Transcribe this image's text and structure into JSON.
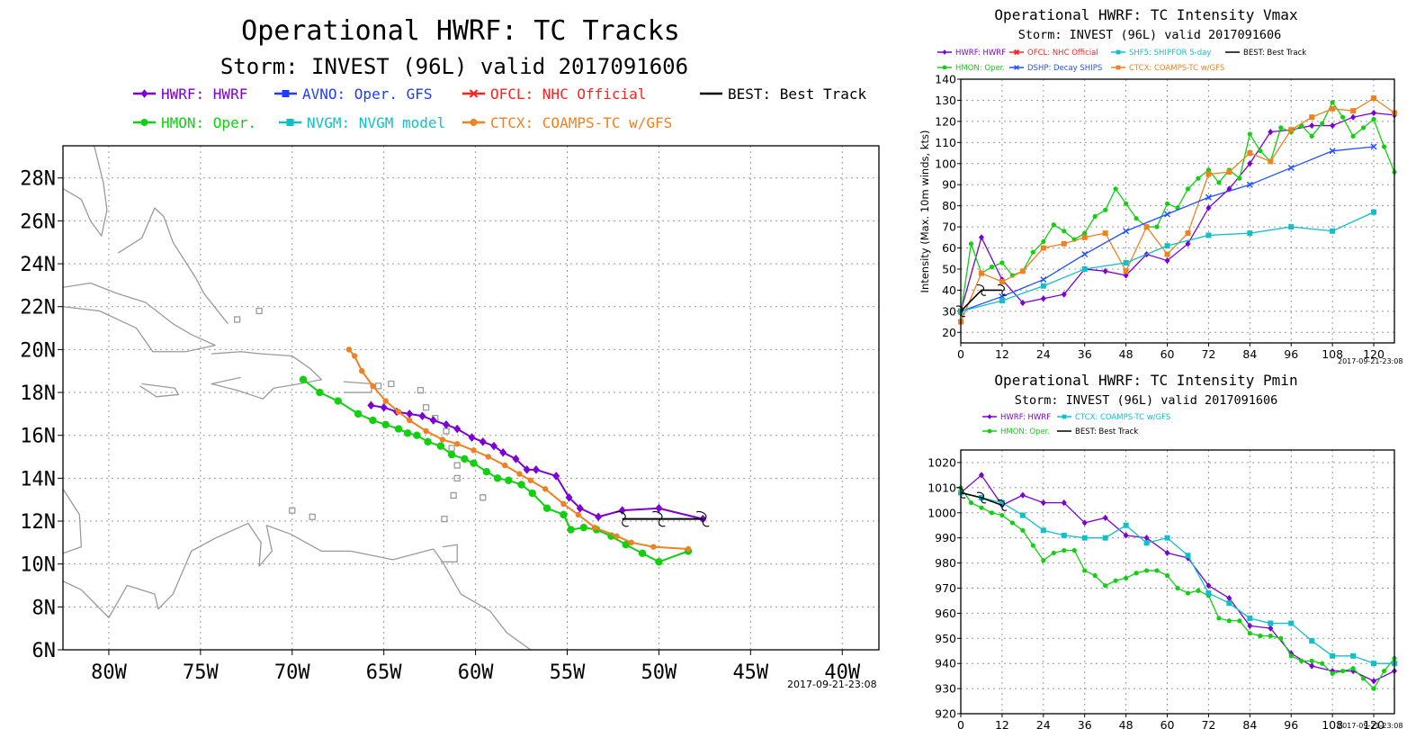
{
  "colors": {
    "HWRF": "#7b00d6",
    "AVNO": "#1e3cff",
    "OFCL": "#ff2020",
    "BEST": "#000000",
    "HMON": "#10d010",
    "NVGM": "#10c0c8",
    "CTCX": "#f08020",
    "DSHP": "#2050ff",
    "SHF5": "#10c0c8",
    "land": "#9a9a9a"
  },
  "chart_data": [
    {
      "id": "tracks",
      "type": "line",
      "title": "Operational HWRF: TC Tracks",
      "subtitle": "Storm: INVEST (96L) valid 2017091606",
      "timestamp": "2017-09-21-23:08",
      "xlim": [
        -82.5,
        -38
      ],
      "ylim": [
        6,
        29.5
      ],
      "xticks": [
        -80,
        -75,
        -70,
        -65,
        -60,
        -55,
        -50,
        -45,
        -40
      ],
      "xtick_labels": [
        "80W",
        "75W",
        "70W",
        "65W",
        "60W",
        "55W",
        "50W",
        "45W",
        "40W"
      ],
      "yticks": [
        6,
        8,
        10,
        12,
        14,
        16,
        18,
        20,
        22,
        24,
        26,
        28
      ],
      "ytick_labels": [
        "6N",
        "8N",
        "10N",
        "12N",
        "14N",
        "16N",
        "18N",
        "20N",
        "22N",
        "24N",
        "26N",
        "28N"
      ],
      "legend": [
        {
          "key": "HWRF",
          "label": "HWRF: HWRF"
        },
        {
          "key": "AVNO",
          "label": "AVNO: Oper. GFS"
        },
        {
          "key": "OFCL",
          "label": "OFCL: NHC Official"
        },
        {
          "key": "BEST",
          "label": "BEST: Best Track"
        },
        {
          "key": "HMON",
          "label": "HMON: Oper."
        },
        {
          "key": "NVGM",
          "label": "NVGM: NVGM model"
        },
        {
          "key": "CTCX",
          "label": "CTCX: COAMPS-TC w/GFS"
        }
      ],
      "series": [
        {
          "key": "HWRF",
          "points": [
            [
              -47.6,
              12.1
            ],
            [
              -50,
              12.6
            ],
            [
              -52,
              12.5
            ],
            [
              -53.3,
              12.2
            ],
            [
              -54.3,
              12.6
            ],
            [
              -54.9,
              13.1
            ],
            [
              -55.6,
              14.1
            ],
            [
              -56.7,
              14.4
            ],
            [
              -57.2,
              14.4
            ],
            [
              -57.8,
              14.9
            ],
            [
              -58.5,
              15.2
            ],
            [
              -59,
              15.5
            ],
            [
              -59.6,
              15.7
            ],
            [
              -60.2,
              15.9
            ],
            [
              -61,
              16.3
            ],
            [
              -61.6,
              16.5
            ],
            [
              -62.3,
              16.7
            ],
            [
              -62.9,
              16.9
            ],
            [
              -63.6,
              17
            ],
            [
              -64.3,
              17.1
            ],
            [
              -65,
              17.3
            ],
            [
              -65.7,
              17.4
            ]
          ]
        },
        {
          "key": "HMON",
          "points": [
            [
              -48.4,
              10.6
            ],
            [
              -50,
              10.1
            ],
            [
              -50.9,
              10.5
            ],
            [
              -51.8,
              10.9
            ],
            [
              -52.6,
              11.3
            ],
            [
              -53.4,
              11.6
            ],
            [
              -54.1,
              11.7
            ],
            [
              -54.8,
              11.6
            ],
            [
              -55.2,
              12.3
            ],
            [
              -56.1,
              12.6
            ],
            [
              -56.9,
              13.3
            ],
            [
              -57.5,
              13.7
            ],
            [
              -58.2,
              13.9
            ],
            [
              -58.8,
              14
            ],
            [
              -59.4,
              14.3
            ],
            [
              -60.1,
              14.7
            ],
            [
              -60.6,
              14.9
            ],
            [
              -61.3,
              15.1
            ],
            [
              -61.9,
              15.5
            ],
            [
              -62.6,
              15.7
            ],
            [
              -63.2,
              16
            ],
            [
              -63.7,
              16.1
            ],
            [
              -64.2,
              16.3
            ],
            [
              -64.9,
              16.5
            ],
            [
              -65.6,
              16.7
            ],
            [
              -66.4,
              17
            ],
            [
              -67.5,
              17.6
            ],
            [
              -68.5,
              18
            ],
            [
              -69.4,
              18.6
            ]
          ]
        },
        {
          "key": "CTCX",
          "points": [
            [
              -48.4,
              10.7
            ],
            [
              -50.3,
              10.8
            ],
            [
              -51.5,
              11
            ],
            [
              -52.3,
              11.3
            ],
            [
              -53.5,
              11.7
            ],
            [
              -54.4,
              12.3
            ],
            [
              -55.2,
              12.8
            ],
            [
              -56.2,
              13.5
            ],
            [
              -57,
              13.9
            ],
            [
              -57.6,
              14.2
            ],
            [
              -58.4,
              14.6
            ],
            [
              -59.3,
              15
            ],
            [
              -60.1,
              15.3
            ],
            [
              -61,
              15.6
            ],
            [
              -61.8,
              15.8
            ],
            [
              -62.7,
              16.2
            ],
            [
              -63.6,
              16.7
            ],
            [
              -64.2,
              17.1
            ],
            [
              -64.9,
              17.6
            ],
            [
              -65.6,
              18.3
            ],
            [
              -66.2,
              19
            ],
            [
              -66.6,
              19.7
            ],
            [
              -66.9,
              20
            ]
          ]
        },
        {
          "key": "BEST",
          "points": [
            [
              -47.6,
              12.1
            ],
            [
              -50,
              12.1
            ],
            [
              -52,
              12.1
            ]
          ]
        }
      ],
      "best_track_symbol": "hurricane-symbol"
    },
    {
      "id": "vmax",
      "type": "line",
      "title": "Operational HWRF: TC Intensity Vmax",
      "subtitle": "Storm: INVEST (96L) valid 2017091606",
      "ylabel": "Intensity (Max. 10m winds, kts)",
      "timestamp": "2017-09-21-23:08",
      "xlim": [
        0,
        126
      ],
      "ylim": [
        15,
        140
      ],
      "xticks": [
        0,
        12,
        24,
        36,
        48,
        60,
        72,
        84,
        96,
        108,
        120
      ],
      "yticks": [
        20,
        30,
        40,
        50,
        60,
        70,
        80,
        90,
        100,
        110,
        120,
        130,
        140
      ],
      "legend": [
        {
          "key": "HWRF",
          "label": "HWRF: HWRF"
        },
        {
          "key": "OFCL",
          "label": "OFCL: NHC Official"
        },
        {
          "key": "SHF5",
          "label": "SHF5: SHIPFOR 5-day"
        },
        {
          "key": "BEST",
          "label": "BEST: Best Track"
        },
        {
          "key": "HMON",
          "label": "HMON: Oper."
        },
        {
          "key": "DSHP",
          "label": "DSHP: Decay SHIPS"
        },
        {
          "key": "CTCX",
          "label": "CTCX: COAMPS-TC w/GFS"
        }
      ],
      "series": [
        {
          "key": "HWRF",
          "marker": "diamond",
          "x": [
            0,
            6,
            12,
            18,
            24,
            30,
            36,
            42,
            48,
            54,
            60,
            66,
            72,
            78,
            84,
            90,
            96,
            102,
            108,
            114,
            120,
            126
          ],
          "y": [
            30,
            65,
            45,
            34,
            36,
            38,
            50,
            49,
            47,
            57,
            54,
            62,
            79,
            88,
            100,
            115,
            116,
            118,
            118,
            122,
            124,
            123
          ]
        },
        {
          "key": "HMON",
          "marker": "circle",
          "x": [
            0,
            3,
            6,
            9,
            12,
            15,
            18,
            21,
            24,
            27,
            30,
            33,
            36,
            39,
            42,
            45,
            48,
            51,
            54,
            57,
            60,
            63,
            66,
            69,
            72,
            75,
            78,
            81,
            84,
            87,
            90,
            93,
            96,
            99,
            102,
            105,
            108,
            111,
            114,
            117,
            120,
            123,
            126
          ],
          "y": [
            29,
            62,
            48,
            51,
            53,
            47,
            49,
            58,
            63,
            71,
            68,
            64,
            67,
            75,
            78,
            88,
            81,
            74,
            70,
            70,
            81,
            79,
            88,
            93,
            97,
            91,
            97,
            93,
            114,
            106,
            101,
            117,
            115,
            118,
            113,
            119,
            129,
            122,
            113,
            117,
            121,
            108,
            96
          ]
        },
        {
          "key": "CTCX",
          "marker": "square",
          "x": [
            0,
            6,
            12,
            18,
            24,
            30,
            36,
            42,
            48,
            54,
            60,
            66,
            72,
            78,
            84,
            90,
            96,
            102,
            108,
            114,
            120,
            126
          ],
          "y": [
            25,
            48,
            44,
            49,
            60,
            62,
            65,
            67,
            49,
            70,
            57,
            67,
            95,
            96,
            105,
            101,
            116,
            122,
            126,
            125,
            131,
            124
          ]
        },
        {
          "key": "DSHP",
          "marker": "x",
          "x": [
            0,
            12,
            24,
            36,
            48,
            60,
            72,
            84,
            96,
            108,
            120
          ],
          "y": [
            30,
            37,
            45,
            57,
            68,
            76,
            84,
            90,
            98,
            106,
            108
          ]
        },
        {
          "key": "SHF5",
          "marker": "square",
          "x": [
            0,
            12,
            24,
            36,
            48,
            60,
            72,
            84,
            96,
            108,
            120
          ],
          "y": [
            30,
            35,
            42,
            50,
            53,
            61,
            66,
            67,
            70,
            68,
            77
          ]
        },
        {
          "key": "BEST",
          "marker": "hurricane",
          "x": [
            0,
            6,
            12
          ],
          "y": [
            30,
            40,
            40
          ]
        }
      ]
    },
    {
      "id": "pmin",
      "type": "line",
      "title": "Operational HWRF: TC Intensity Pmin",
      "subtitle": "Storm: INVEST (96L) valid 2017091606",
      "timestamp": "2017-09-21-23:08",
      "xlim": [
        0,
        126
      ],
      "ylim": [
        920,
        1025
      ],
      "xticks": [
        0,
        12,
        24,
        36,
        48,
        60,
        72,
        84,
        96,
        108,
        120
      ],
      "yticks": [
        920,
        930,
        940,
        950,
        960,
        970,
        980,
        990,
        1000,
        1010,
        1020
      ],
      "legend": [
        {
          "key": "HWRF",
          "label": "HWRF: HWRF"
        },
        {
          "key": "CTCX",
          "label": "CTCX: COAMPS-TC w/GFS",
          "color": "#10c0c8"
        },
        {
          "key": "HMON",
          "label": "HMON: Oper."
        },
        {
          "key": "BEST",
          "label": "BEST: Best Track"
        }
      ],
      "series": [
        {
          "key": "HWRF",
          "marker": "diamond",
          "x": [
            0,
            6,
            12,
            18,
            24,
            30,
            36,
            42,
            48,
            54,
            60,
            66,
            72,
            78,
            84,
            90,
            96,
            102,
            108,
            114,
            120,
            126
          ],
          "y": [
            1008,
            1015,
            1003,
            1007,
            1004,
            1004,
            996,
            998,
            991,
            990,
            984,
            982,
            971,
            966,
            955,
            954,
            944,
            939,
            937,
            937,
            933,
            937
          ]
        },
        {
          "key": "HMON",
          "marker": "circle",
          "x": [
            0,
            3,
            6,
            9,
            12,
            15,
            18,
            21,
            24,
            27,
            30,
            33,
            36,
            39,
            42,
            45,
            48,
            51,
            54,
            57,
            60,
            63,
            66,
            69,
            72,
            75,
            78,
            81,
            84,
            87,
            90,
            93,
            96,
            99,
            102,
            105,
            108,
            111,
            114,
            117,
            120,
            123,
            126
          ],
          "y": [
            1010,
            1004,
            1002,
            1000,
            999,
            996,
            993,
            987,
            981,
            984,
            985,
            985,
            977,
            975,
            971,
            973,
            974,
            976,
            977,
            977,
            975,
            970,
            968,
            969,
            967,
            958,
            957,
            957,
            952,
            951,
            951,
            950,
            943,
            941,
            941,
            940,
            936,
            937,
            938,
            934,
            930,
            937,
            942
          ]
        },
        {
          "key": "CTCX",
          "color": "#10c0c8",
          "marker": "square",
          "x": [
            0,
            6,
            12,
            18,
            24,
            30,
            36,
            42,
            48,
            54,
            60,
            66,
            72,
            78,
            84,
            90,
            96,
            102,
            108,
            114,
            120,
            126
          ],
          "y": [
            1008,
            1006,
            1004,
            999,
            993,
            991,
            990,
            990,
            995,
            988,
            990,
            983,
            968,
            964,
            958,
            956,
            956,
            949,
            943,
            943,
            940,
            940
          ]
        },
        {
          "key": "BEST",
          "marker": "hurricane",
          "x": [
            0,
            6,
            12
          ],
          "y": [
            1008,
            1006,
            1003
          ]
        }
      ]
    }
  ]
}
